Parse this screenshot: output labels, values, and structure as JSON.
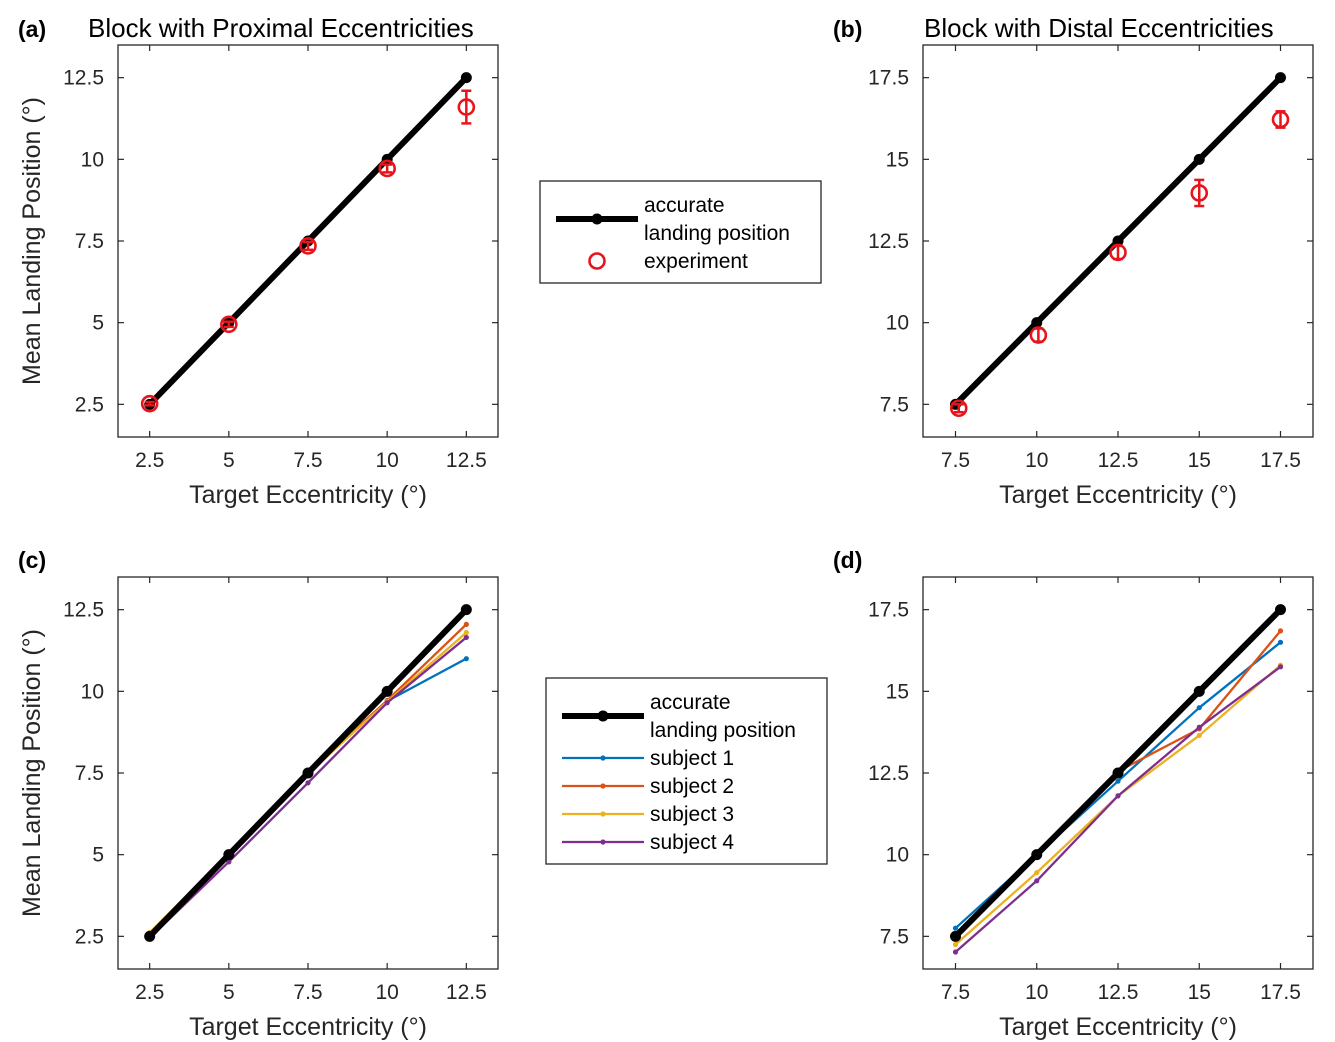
{
  "colors": {
    "accurate": "#000000",
    "experiment": "#e8141c",
    "subject1": "#0072bd",
    "subject2": "#d95319",
    "subject3": "#edb120",
    "subject4": "#7e2f8e"
  },
  "chart_data": [
    {
      "id": "a",
      "panel_label": "(a)",
      "type": "line",
      "title": "Block with Proximal Eccentricities",
      "xlabel": "Target Eccentricity (°)",
      "ylabel": "Mean Landing Position (°)",
      "xlim": [
        1.5,
        13.5
      ],
      "ylim": [
        1.5,
        13.5
      ],
      "xticks": [
        2.5,
        5,
        7.5,
        10,
        12.5
      ],
      "xtick_labels": [
        "2.5",
        "5",
        "7.5",
        "10",
        "12.5"
      ],
      "yticks": [
        2.5,
        5,
        7.5,
        10,
        12.5
      ],
      "ytick_labels": [
        "2.5",
        "5",
        "7.5",
        "10",
        "12.5"
      ],
      "series": [
        {
          "name": "accurate landing position",
          "style": "accurate",
          "x": [
            2.5,
            5,
            7.5,
            10,
            12.5
          ],
          "y": [
            2.5,
            5,
            7.5,
            10,
            12.5
          ]
        },
        {
          "name": "experiment",
          "style": "experiment",
          "x": [
            2.5,
            5,
            7.5,
            10,
            12.5
          ],
          "y": [
            2.52,
            4.95,
            7.35,
            9.72,
            11.6
          ],
          "err": [
            0.05,
            0.08,
            0.12,
            0.12,
            0.5
          ]
        }
      ]
    },
    {
      "id": "b",
      "panel_label": "(b)",
      "type": "line",
      "title": "Block with Distal Eccentricities",
      "xlabel": "Target Eccentricity (°)",
      "ylabel": "",
      "xlim": [
        6.5,
        18.5
      ],
      "ylim": [
        6.5,
        18.5
      ],
      "xticks": [
        7.5,
        10,
        12.5,
        15,
        17.5
      ],
      "xtick_labels": [
        "7.5",
        "10",
        "12.5",
        "15",
        "17.5"
      ],
      "yticks": [
        7.5,
        10,
        12.5,
        15,
        17.5
      ],
      "ytick_labels": [
        "7.5",
        "10",
        "12.5",
        "15",
        "17.5"
      ],
      "series": [
        {
          "name": "accurate landing position",
          "style": "accurate",
          "x": [
            7.5,
            10,
            12.5,
            15,
            17.5
          ],
          "y": [
            7.5,
            10,
            12.5,
            15,
            17.5
          ]
        },
        {
          "name": "experiment",
          "style": "experiment",
          "x": [
            7.6,
            10.05,
            12.5,
            15,
            17.5
          ],
          "y": [
            7.38,
            9.62,
            12.15,
            13.97,
            16.22
          ],
          "err": [
            0.12,
            0.2,
            0.2,
            0.4,
            0.25
          ]
        }
      ]
    },
    {
      "id": "c",
      "panel_label": "(c)",
      "type": "line",
      "title": "",
      "xlabel": "Target Eccentricity (°)",
      "ylabel": "Mean Landing Position (°)",
      "xlim": [
        1.5,
        13.5
      ],
      "ylim": [
        1.5,
        13.5
      ],
      "xticks": [
        2.5,
        5,
        7.5,
        10,
        12.5
      ],
      "xtick_labels": [
        "2.5",
        "5",
        "7.5",
        "10",
        "12.5"
      ],
      "yticks": [
        2.5,
        5,
        7.5,
        10,
        12.5
      ],
      "ytick_labels": [
        "2.5",
        "5",
        "7.5",
        "10",
        "12.5"
      ],
      "series": [
        {
          "name": "accurate landing position",
          "style": "accurate",
          "x": [
            2.5,
            5,
            7.5,
            10,
            12.5
          ],
          "y": [
            2.5,
            5,
            7.5,
            10,
            12.5
          ]
        },
        {
          "name": "subject 1",
          "style": "subject1",
          "x": [
            2.5,
            5,
            7.5,
            10,
            12.5
          ],
          "y": [
            2.55,
            4.95,
            7.5,
            9.7,
            11.0
          ]
        },
        {
          "name": "subject 2",
          "style": "subject2",
          "x": [
            2.5,
            5,
            7.5,
            10,
            12.5
          ],
          "y": [
            2.55,
            4.98,
            7.52,
            9.72,
            12.05
          ]
        },
        {
          "name": "subject 3",
          "style": "subject3",
          "x": [
            2.5,
            5,
            7.5,
            10,
            12.5
          ],
          "y": [
            2.62,
            5.02,
            7.48,
            9.68,
            11.8
          ]
        },
        {
          "name": "subject 4",
          "style": "subject4",
          "x": [
            2.5,
            5,
            7.5,
            10,
            12.5
          ],
          "y": [
            2.45,
            4.78,
            7.2,
            9.65,
            11.65
          ]
        }
      ]
    },
    {
      "id": "d",
      "panel_label": "(d)",
      "type": "line",
      "title": "",
      "xlabel": "Target Eccentricity (°)",
      "ylabel": "",
      "xlim": [
        6.5,
        18.5
      ],
      "ylim": [
        6.5,
        18.5
      ],
      "xticks": [
        7.5,
        10,
        12.5,
        15,
        17.5
      ],
      "xtick_labels": [
        "7.5",
        "10",
        "12.5",
        "15",
        "17.5"
      ],
      "yticks": [
        7.5,
        10,
        12.5,
        15,
        17.5
      ],
      "ytick_labels": [
        "7.5",
        "10",
        "12.5",
        "15",
        "17.5"
      ],
      "series": [
        {
          "name": "accurate landing position",
          "style": "accurate",
          "x": [
            7.5,
            10,
            12.5,
            15,
            17.5
          ],
          "y": [
            7.5,
            10,
            12.5,
            15,
            17.5
          ]
        },
        {
          "name": "subject 1",
          "style": "subject1",
          "x": [
            7.5,
            10,
            12.5,
            15,
            17.5
          ],
          "y": [
            7.75,
            10.0,
            12.25,
            14.5,
            16.5
          ]
        },
        {
          "name": "subject 2",
          "style": "subject2",
          "x": [
            7.5,
            10,
            12.5,
            15,
            17.5
          ],
          "y": [
            7.45,
            9.95,
            12.55,
            13.85,
            16.85
          ]
        },
        {
          "name": "subject 3",
          "style": "subject3",
          "x": [
            7.5,
            10,
            12.5,
            15,
            17.5
          ],
          "y": [
            7.25,
            9.45,
            11.8,
            13.65,
            15.8
          ]
        },
        {
          "name": "subject 4",
          "style": "subject4",
          "x": [
            7.5,
            10,
            12.5,
            15,
            17.5
          ],
          "y": [
            7.02,
            9.2,
            11.8,
            13.9,
            15.75
          ]
        }
      ]
    }
  ],
  "legends": [
    {
      "id": "legend-top",
      "placement": "between panels a and b",
      "entries": [
        {
          "label_lines": [
            "accurate",
            "landing position"
          ],
          "style": "accurate"
        },
        {
          "label_lines": [
            "experiment"
          ],
          "style": "experiment"
        }
      ]
    },
    {
      "id": "legend-bottom",
      "placement": "between panels c and d",
      "entries": [
        {
          "label_lines": [
            "accurate",
            "landing position"
          ],
          "style": "accurate"
        },
        {
          "label_lines": [
            "subject 1"
          ],
          "style": "subject1"
        },
        {
          "label_lines": [
            "subject 2"
          ],
          "style": "subject2"
        },
        {
          "label_lines": [
            "subject 3"
          ],
          "style": "subject3"
        },
        {
          "label_lines": [
            "subject 4"
          ],
          "style": "subject4"
        }
      ]
    }
  ]
}
